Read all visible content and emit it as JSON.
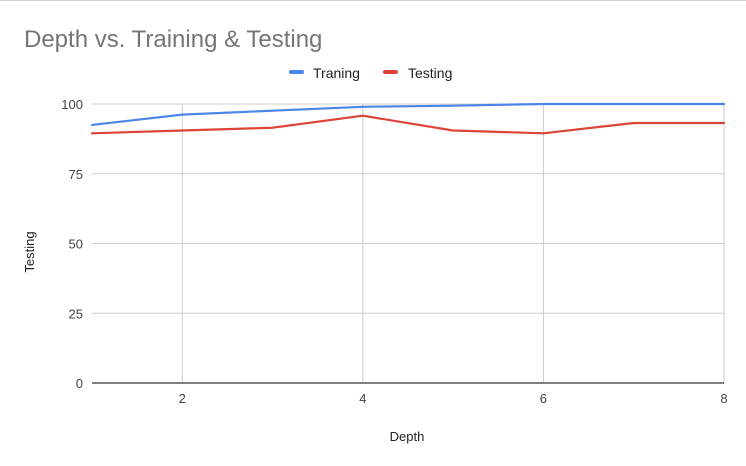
{
  "chart_data": {
    "type": "line",
    "title": "Depth vs. Training & Testing",
    "xlabel": "Depth",
    "ylabel": "Testing",
    "xlim": [
      1,
      8
    ],
    "ylim": [
      0,
      100
    ],
    "x_ticks": [
      "2",
      "4",
      "6",
      "8"
    ],
    "y_ticks": [
      "0",
      "25",
      "50",
      "75",
      "100"
    ],
    "x_tick_values": [
      2,
      4,
      6,
      8
    ],
    "y_tick_values": [
      0,
      25,
      50,
      75,
      100
    ],
    "grid": true,
    "legend_position": "top",
    "x": [
      1,
      2,
      3,
      4,
      5,
      6,
      7,
      8
    ],
    "series": [
      {
        "name": "Traning",
        "color": "#4a86e8",
        "values": [
          92.5,
          96.2,
          97.6,
          99.0,
          99.4,
          100,
          100,
          100
        ]
      },
      {
        "name": "Testing",
        "color": "#db4437",
        "values": [
          89.5,
          90.5,
          91.5,
          95.8,
          90.5,
          89.5,
          93.2,
          93.2
        ]
      }
    ]
  }
}
